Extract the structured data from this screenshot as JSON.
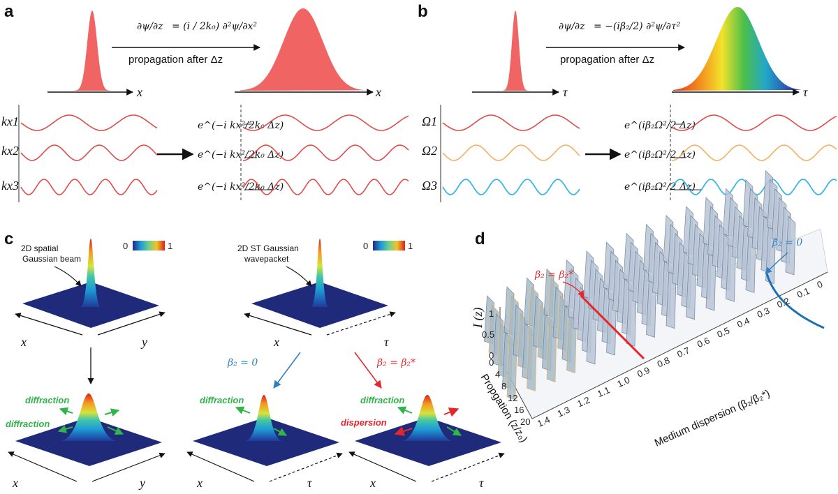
{
  "panels": {
    "a": "a",
    "b": "b",
    "c": "c",
    "d": "d"
  },
  "a": {
    "eq_lhs": "∂ψ/∂z",
    "eq_rhs": "= (i / 2k₀) ∂²ψ/∂x²",
    "caption": "propagation after Δz",
    "axis": "x",
    "modes": [
      "kx1",
      "kx2",
      "kx3"
    ],
    "phase": "e^(−i kx²/2k₀ Δz)"
  },
  "b": {
    "eq_lhs": "∂ψ/∂z",
    "eq_rhs": "= −(iβ₂/2) ∂²ψ/∂τ²",
    "caption": "propagation after Δz",
    "axis": "τ",
    "modes": [
      "Ω1",
      "Ω2",
      "Ω3"
    ],
    "phase": "e^(iβ₂Ω²/2 Δz)"
  },
  "c": {
    "beam1": [
      "2D spatial",
      "Gaussian beam"
    ],
    "beam2": [
      "2D ST Gaussian",
      "wavepacket"
    ],
    "cb_min": "0",
    "cb_max": "1",
    "ax_x": "x",
    "ax_y": "y",
    "ax_tau": "τ",
    "beta0": "β₂ = 0",
    "beta_star": "β₂ = β₂*",
    "diffraction": "diffraction",
    "dispersion": "dispersion"
  },
  "d": {
    "zlabel": "I (z)",
    "ylabel": "Propgation (z/z₀)",
    "xlabel": "Medium dispersion (β₂/β₂*)",
    "beta0": "β₂ = 0",
    "beta_star": "β₂ = β₂*",
    "z_ticks": [
      "0",
      "0.5",
      "1"
    ],
    "prop_ticks": [
      "0",
      "4",
      "8",
      "12",
      "16",
      "20"
    ],
    "disp_ticks": [
      "1.4",
      "1.3",
      "1.2",
      "1.1",
      "1.0",
      "0.9",
      "0.8",
      "0.7",
      "0.6",
      "0.5",
      "0.4",
      "0.3",
      "0.2",
      "0.1",
      "0"
    ]
  },
  "colors": {
    "red": "#ef5b5b",
    "orange": "#f4b061",
    "cyan": "#39b7e6",
    "green": "#2fb54a",
    "blue": "#2f7fc1",
    "accent_red": "#e6262d"
  }
}
